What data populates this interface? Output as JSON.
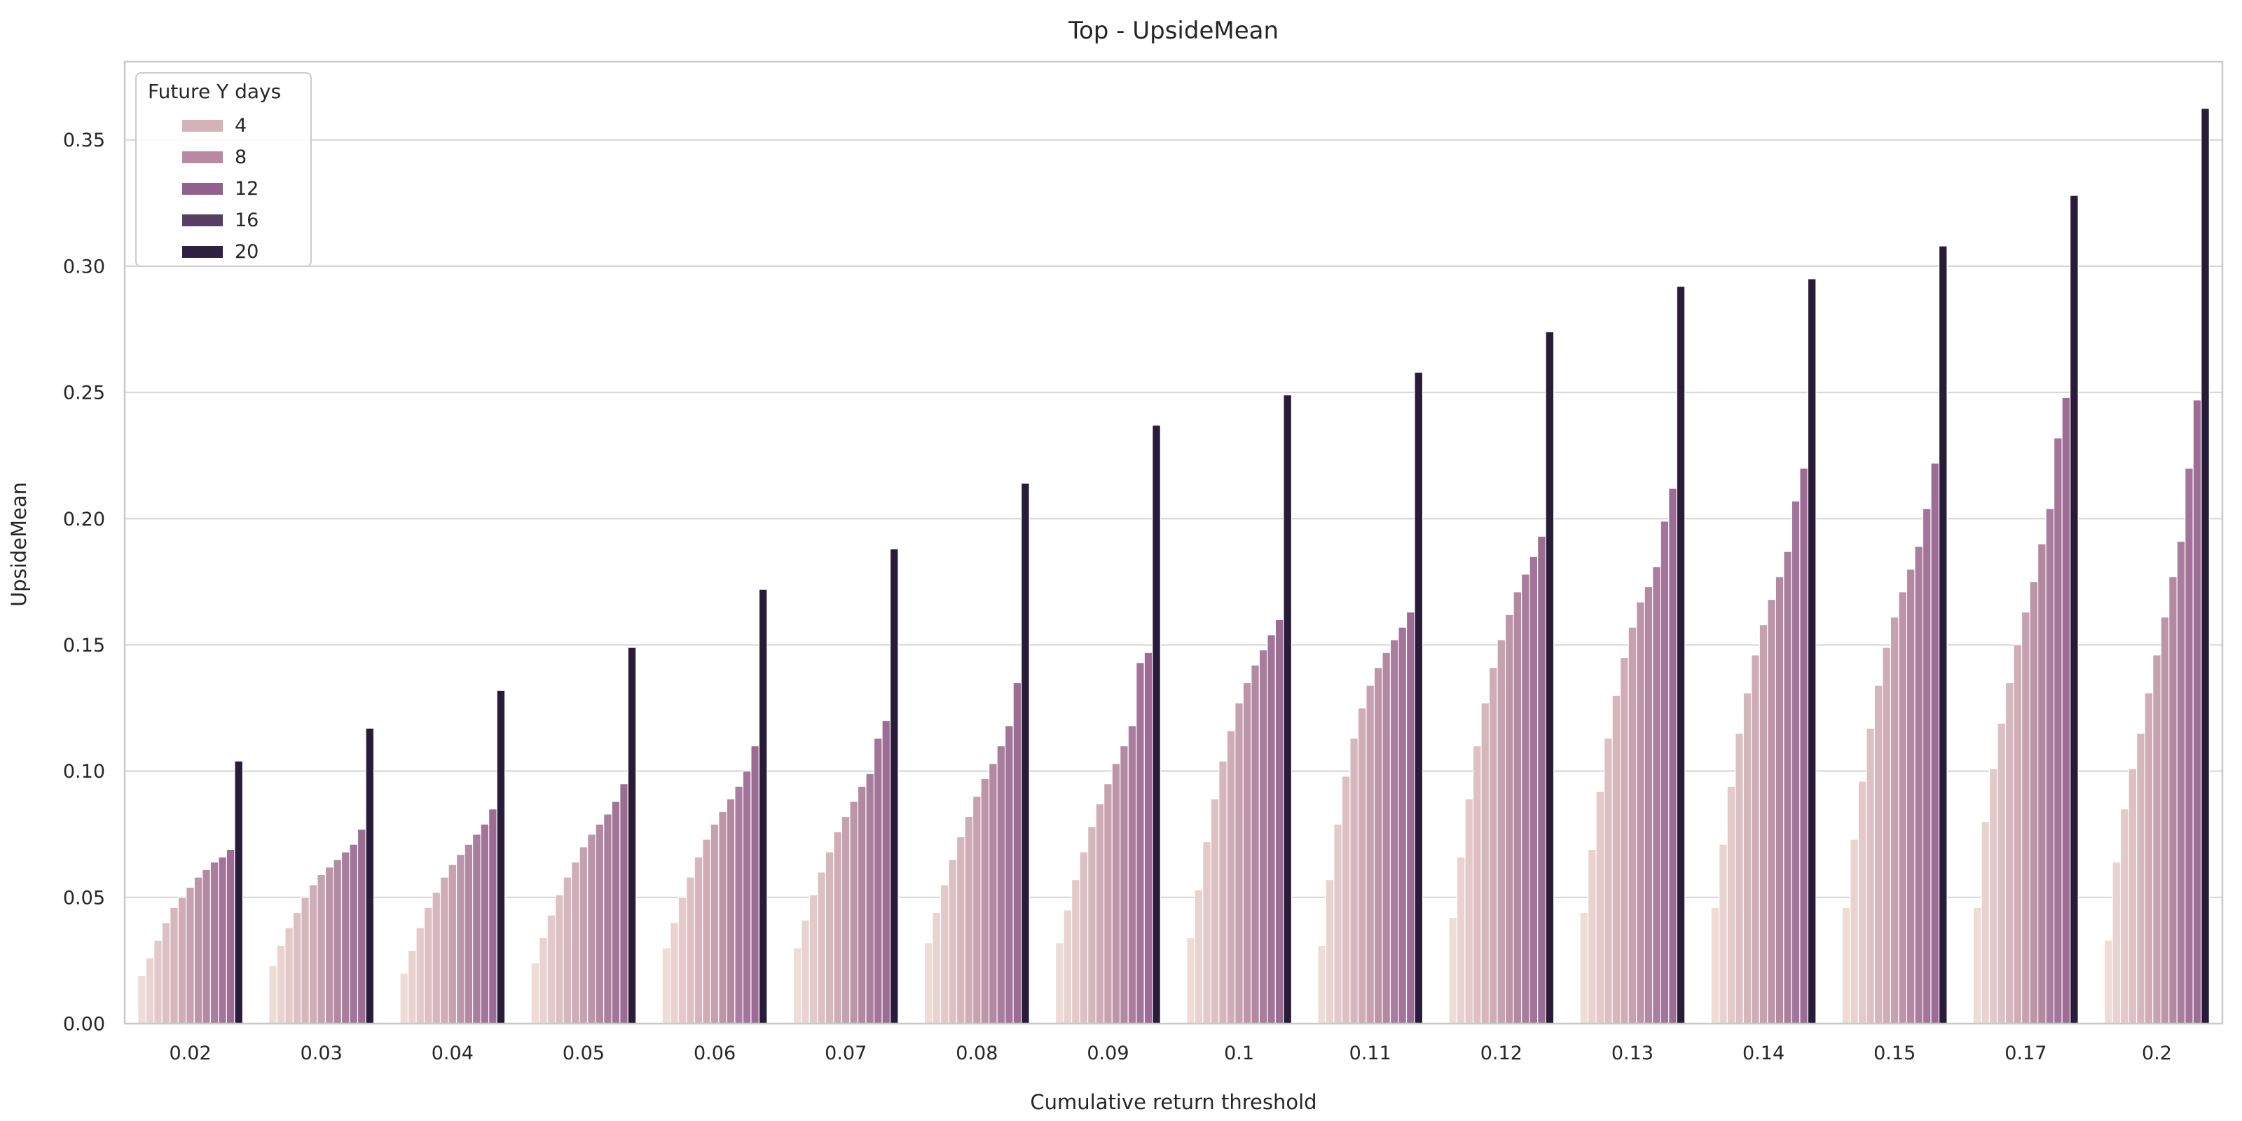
{
  "figure": {
    "title": "Top - UpsideMean",
    "xlabel": "Cumulative return threshold",
    "ylabel": "UpsideMean",
    "background_color": "#ffffff",
    "grid_color": "#d8d8d8",
    "spine_color": "#c9c9c9",
    "text_color": "#262626"
  },
  "legend": {
    "title": "Future Y days",
    "entries": [
      {
        "label": "4",
        "color": "#d4b2ba"
      },
      {
        "label": "8",
        "color": "#ba88a2"
      },
      {
        "label": "12",
        "color": "#90618c"
      },
      {
        "label": "16",
        "color": "#593e66"
      },
      {
        "label": "20",
        "color": "#2d2040"
      }
    ]
  },
  "chart_data": {
    "type": "bar",
    "title": "Top - UpsideMean",
    "xlabel": "Cumulative return threshold",
    "ylabel": "UpsideMean",
    "legend_title": "Future Y days",
    "legend_values_shown": [
      "4",
      "8",
      "12",
      "16",
      "20"
    ],
    "grid": "horizontal",
    "legend_position": "upper-left",
    "bars_per_group": 13,
    "x_categories": [
      "0.02",
      "0.03",
      "0.04",
      "0.05",
      "0.06",
      "0.07",
      "0.08",
      "0.09",
      "0.1",
      "0.11",
      "0.12",
      "0.13",
      "0.14",
      "0.15",
      "0.17",
      "0.2"
    ],
    "y_ticks": [
      {
        "label": "0.00",
        "value": 0.0
      },
      {
        "label": "0.05",
        "value": 0.05
      },
      {
        "label": "0.10",
        "value": 0.1
      },
      {
        "label": "0.15",
        "value": 0.15
      },
      {
        "label": "0.20",
        "value": 0.2
      },
      {
        "label": "0.25",
        "value": 0.25
      },
      {
        "label": "0.30",
        "value": 0.3
      },
      {
        "label": "0.35",
        "value": 0.35
      }
    ],
    "ylim": [
      0,
      0.381
    ],
    "bar_colors": [
      "#eedcd6",
      "#e9d2d0",
      "#e3c9ca",
      "#ddc0c3",
      "#d6b6bd",
      "#cfacb6",
      "#c6a1af",
      "#bd95a8",
      "#b389a2",
      "#a97d9d",
      "#a3749a",
      "#9c6c95",
      "#281c39"
    ],
    "groups": [
      {
        "category": "0.02",
        "values": [
          0.019,
          0.026,
          0.033,
          0.04,
          0.046,
          0.05,
          0.054,
          0.058,
          0.061,
          0.064,
          0.066,
          0.069,
          0.104
        ]
      },
      {
        "category": "0.03",
        "values": [
          0.023,
          0.031,
          0.038,
          0.044,
          0.05,
          0.055,
          0.059,
          0.062,
          0.065,
          0.068,
          0.071,
          0.077,
          0.117
        ]
      },
      {
        "category": "0.04",
        "values": [
          0.02,
          0.029,
          0.038,
          0.046,
          0.052,
          0.058,
          0.063,
          0.067,
          0.071,
          0.075,
          0.079,
          0.085,
          0.132
        ]
      },
      {
        "category": "0.05",
        "values": [
          0.024,
          0.034,
          0.043,
          0.051,
          0.058,
          0.064,
          0.07,
          0.075,
          0.079,
          0.083,
          0.088,
          0.095,
          0.149
        ]
      },
      {
        "category": "0.06",
        "values": [
          0.03,
          0.04,
          0.05,
          0.058,
          0.066,
          0.073,
          0.079,
          0.084,
          0.089,
          0.094,
          0.1,
          0.11,
          0.172
        ]
      },
      {
        "category": "0.07",
        "values": [
          0.03,
          0.041,
          0.051,
          0.06,
          0.068,
          0.076,
          0.082,
          0.088,
          0.094,
          0.099,
          0.113,
          0.12,
          0.188
        ]
      },
      {
        "category": "0.08",
        "values": [
          0.032,
          0.044,
          0.055,
          0.065,
          0.074,
          0.082,
          0.09,
          0.097,
          0.103,
          0.11,
          0.118,
          0.135,
          0.214
        ]
      },
      {
        "category": "0.09",
        "values": [
          0.032,
          0.045,
          0.057,
          0.068,
          0.078,
          0.087,
          0.095,
          0.103,
          0.11,
          0.118,
          0.143,
          0.147,
          0.237
        ]
      },
      {
        "category": "0.1",
        "values": [
          0.034,
          0.053,
          0.072,
          0.089,
          0.104,
          0.116,
          0.127,
          0.135,
          0.142,
          0.148,
          0.154,
          0.16,
          0.249
        ]
      },
      {
        "category": "0.11",
        "values": [
          0.031,
          0.057,
          0.079,
          0.098,
          0.113,
          0.125,
          0.134,
          0.141,
          0.147,
          0.152,
          0.157,
          0.163,
          0.258
        ]
      },
      {
        "category": "0.12",
        "values": [
          0.042,
          0.066,
          0.089,
          0.11,
          0.127,
          0.141,
          0.152,
          0.162,
          0.171,
          0.178,
          0.185,
          0.193,
          0.274
        ]
      },
      {
        "category": "0.13",
        "values": [
          0.044,
          0.069,
          0.092,
          0.113,
          0.13,
          0.145,
          0.157,
          0.167,
          0.173,
          0.181,
          0.199,
          0.212,
          0.292
        ]
      },
      {
        "category": "0.14",
        "values": [
          0.046,
          0.071,
          0.094,
          0.115,
          0.131,
          0.146,
          0.158,
          0.168,
          0.177,
          0.187,
          0.207,
          0.22,
          0.295
        ]
      },
      {
        "category": "0.15",
        "values": [
          0.046,
          0.073,
          0.096,
          0.117,
          0.134,
          0.149,
          0.161,
          0.171,
          0.18,
          0.189,
          0.204,
          0.222,
          0.308
        ]
      },
      {
        "category": "0.17",
        "values": [
          0.046,
          0.08,
          0.101,
          0.119,
          0.135,
          0.15,
          0.163,
          0.175,
          0.19,
          0.204,
          0.232,
          0.248,
          0.328
        ]
      },
      {
        "category": "0.2",
        "values": [
          0.033,
          0.064,
          0.085,
          0.101,
          0.115,
          0.131,
          0.146,
          0.161,
          0.177,
          0.191,
          0.22,
          0.247,
          0.3625
        ]
      }
    ]
  }
}
